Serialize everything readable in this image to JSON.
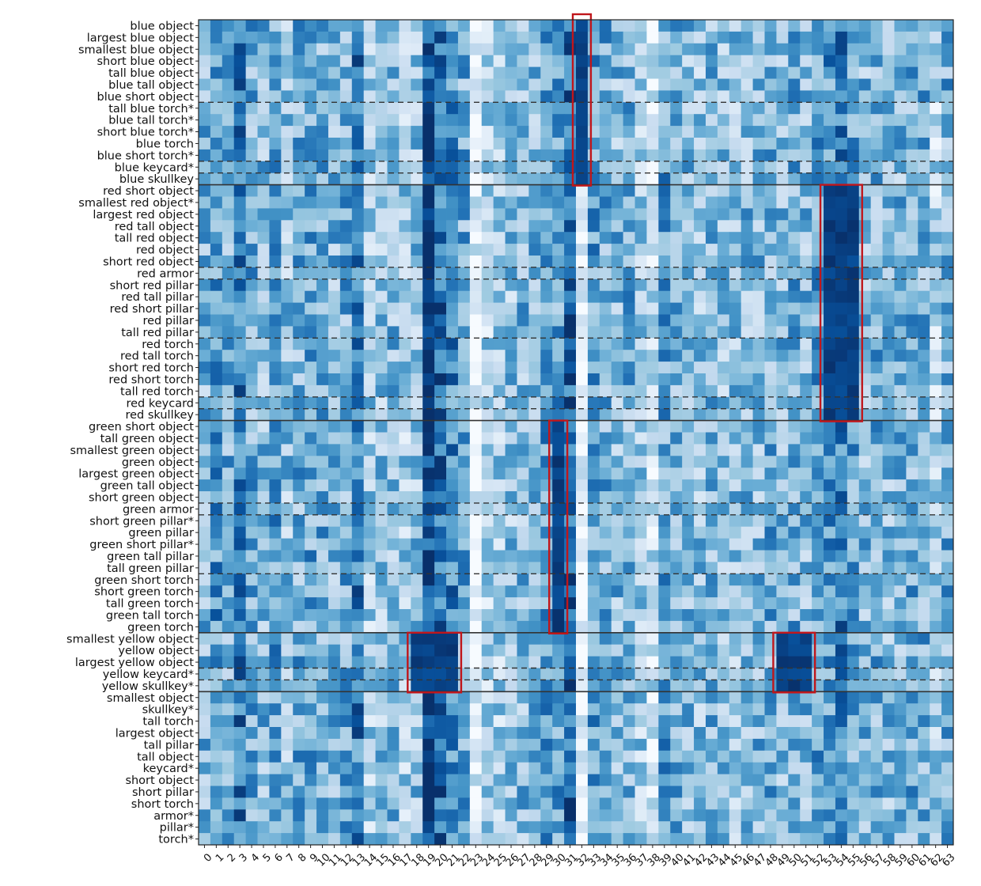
{
  "chart_data": {
    "type": "heatmap",
    "title": "",
    "xlabel": "",
    "ylabel": "",
    "colormap": "Blues",
    "colors": {
      "cell_low": "#f7fbff",
      "cell_high": "#08306b",
      "box": "#c0161b",
      "divider": "#333333",
      "frame": "#222222"
    },
    "grid": false,
    "rows": [
      "blue object",
      "largest blue object",
      "smallest blue object",
      "short blue object",
      "tall blue object",
      "blue tall object",
      "blue short object",
      "tall blue torch*",
      "blue tall torch*",
      "short blue torch*",
      "blue torch",
      "blue short torch*",
      "blue keycard*",
      "blue skullkey",
      "red short object",
      "smallest red object*",
      "largest red object",
      "red tall object",
      "tall red object",
      "red object",
      "short red object",
      "red armor",
      "short red pillar",
      "red tall pillar",
      "red short pillar",
      "red pillar",
      "tall red pillar",
      "red torch",
      "red tall torch",
      "short red torch",
      "red short torch",
      "tall red torch",
      "red keycard",
      "red skullkey",
      "green short object",
      "tall green object",
      "smallest green object",
      "green object",
      "largest green object",
      "green tall object",
      "short green object",
      "green armor",
      "short green pillar*",
      "green pillar",
      "green short pillar*",
      "green tall pillar",
      "tall green pillar",
      "green short torch",
      "short green torch",
      "tall green torch",
      "green tall torch",
      "green torch",
      "smallest yellow object",
      "yellow object",
      "largest yellow object",
      "yellow keycard*",
      "yellow skullkey*",
      "smallest object",
      "skullkey*",
      "tall torch",
      "largest object",
      "tall pillar",
      "tall object",
      "keycard*",
      "short object",
      "short pillar",
      "short torch",
      "armor*",
      "pillar*",
      "torch*"
    ],
    "columns": [
      "0",
      "1",
      "2",
      "3",
      "4",
      "5",
      "6",
      "7",
      "8",
      "9",
      "10",
      "11",
      "12",
      "13",
      "14",
      "15",
      "16",
      "17",
      "18",
      "19",
      "20",
      "21",
      "22",
      "23",
      "24",
      "25",
      "26",
      "27",
      "28",
      "29",
      "30",
      "31",
      "32",
      "33",
      "34",
      "35",
      "36",
      "37",
      "38",
      "39",
      "40",
      "41",
      "42",
      "43",
      "44",
      "45",
      "46",
      "47",
      "48",
      "49",
      "50",
      "51",
      "52",
      "53",
      "54",
      "55",
      "56",
      "57",
      "58",
      "59",
      "60",
      "61",
      "62",
      "63"
    ],
    "column_strength": [
      0.45,
      0.6,
      0.5,
      0.7,
      0.5,
      0.45,
      0.55,
      0.4,
      0.5,
      0.55,
      0.5,
      0.45,
      0.5,
      0.7,
      0.35,
      0.4,
      0.45,
      0.35,
      0.4,
      0.9,
      0.75,
      0.65,
      0.5,
      0.08,
      0.3,
      0.35,
      0.4,
      0.45,
      0.45,
      0.55,
      0.55,
      0.8,
      0.05,
      0.55,
      0.5,
      0.45,
      0.5,
      0.35,
      0.2,
      0.55,
      0.5,
      0.45,
      0.4,
      0.45,
      0.4,
      0.4,
      0.45,
      0.45,
      0.5,
      0.45,
      0.5,
      0.45,
      0.55,
      0.6,
      0.7,
      0.55,
      0.45,
      0.5,
      0.45,
      0.45,
      0.5,
      0.5,
      0.3,
      0.5
    ],
    "highlights": [
      {
        "rows": [
          0,
          13
        ],
        "cols": [
          32,
          32
        ]
      },
      {
        "rows": [
          14,
          33
        ],
        "cols": [
          53,
          55
        ]
      },
      {
        "rows": [
          34,
          51
        ],
        "cols": [
          30,
          30
        ]
      },
      {
        "rows": [
          52,
          56
        ],
        "cols": [
          18,
          21
        ]
      },
      {
        "rows": [
          52,
          56
        ],
        "cols": [
          49,
          51
        ]
      }
    ],
    "solid_dividers_after_row": [
      13,
      33,
      51,
      56
    ],
    "dashed_dividers_after_row": [
      6,
      11,
      12,
      20,
      21,
      26,
      31,
      32,
      40,
      41,
      46,
      54,
      55
    ]
  }
}
